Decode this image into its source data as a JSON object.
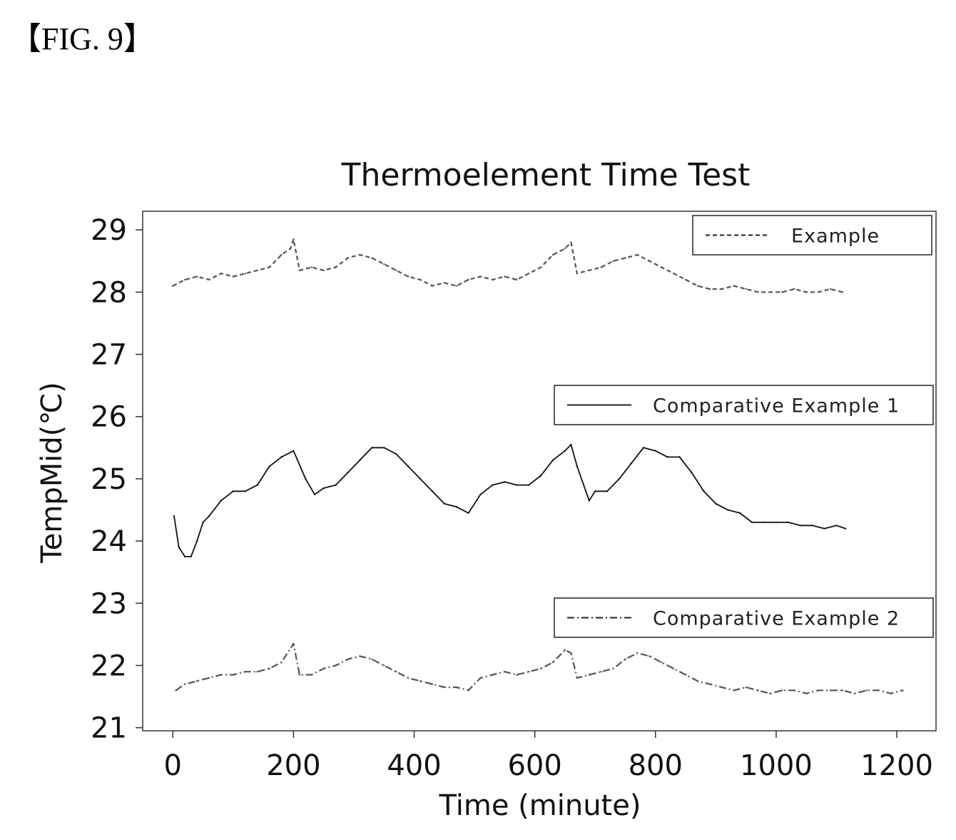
{
  "figure_label": "【FIG. 9】",
  "chart_data": {
    "type": "line",
    "title": "Thermoelement Time Test",
    "xlabel": "Time (minute)",
    "ylabel": "TempMid(℃)",
    "xlim": [
      -50,
      1265
    ],
    "ylim": [
      20.95,
      29.3
    ],
    "x_ticks": [
      "0",
      "200",
      "400",
      "600",
      "800",
      "1000",
      "1200"
    ],
    "y_ticks": [
      "21",
      "22",
      "23",
      "24",
      "25",
      "26",
      "27",
      "28",
      "29"
    ],
    "grid": false,
    "series": [
      {
        "name": "Example",
        "style": "dashed",
        "color": "#555555",
        "x": [
          0,
          20,
          40,
          60,
          80,
          100,
          120,
          140,
          160,
          180,
          195,
          200,
          210,
          230,
          250,
          270,
          290,
          310,
          330,
          350,
          370,
          390,
          410,
          430,
          450,
          470,
          490,
          510,
          530,
          550,
          570,
          590,
          610,
          630,
          650,
          660,
          670,
          690,
          710,
          730,
          750,
          770,
          790,
          810,
          830,
          850,
          870,
          890,
          910,
          930,
          950,
          970,
          990,
          1010,
          1030,
          1050,
          1070,
          1090,
          1110
        ],
        "y": [
          28.1,
          28.2,
          28.25,
          28.2,
          28.3,
          28.25,
          28.3,
          28.35,
          28.4,
          28.6,
          28.7,
          28.85,
          28.35,
          28.4,
          28.35,
          28.4,
          28.55,
          28.6,
          28.55,
          28.45,
          28.35,
          28.25,
          28.2,
          28.1,
          28.15,
          28.1,
          28.2,
          28.25,
          28.2,
          28.25,
          28.2,
          28.3,
          28.4,
          28.6,
          28.7,
          28.8,
          28.3,
          28.35,
          28.4,
          28.5,
          28.55,
          28.6,
          28.5,
          28.4,
          28.3,
          28.2,
          28.1,
          28.05,
          28.05,
          28.1,
          28.05,
          28.0,
          28.0,
          28.0,
          28.05,
          28.0,
          28.0,
          28.05,
          28.0
        ]
      },
      {
        "name": "Comparative Example 1",
        "style": "solid",
        "color": "#111111",
        "x": [
          2,
          10,
          20,
          30,
          40,
          50,
          60,
          80,
          100,
          120,
          140,
          160,
          180,
          200,
          220,
          235,
          250,
          270,
          290,
          310,
          330,
          350,
          370,
          390,
          410,
          430,
          450,
          470,
          490,
          510,
          530,
          550,
          570,
          590,
          610,
          630,
          650,
          660,
          670,
          690,
          700,
          720,
          740,
          760,
          780,
          800,
          820,
          840,
          860,
          880,
          900,
          920,
          940,
          960,
          980,
          1000,
          1020,
          1040,
          1060,
          1080,
          1100,
          1115
        ],
        "y": [
          24.4,
          23.9,
          23.75,
          23.75,
          24.0,
          24.3,
          24.4,
          24.65,
          24.8,
          24.8,
          24.9,
          25.2,
          25.35,
          25.45,
          25.0,
          24.75,
          24.85,
          24.9,
          25.1,
          25.3,
          25.5,
          25.5,
          25.4,
          25.2,
          25.0,
          24.8,
          24.6,
          24.55,
          24.45,
          24.75,
          24.9,
          24.95,
          24.9,
          24.9,
          25.05,
          25.3,
          25.45,
          25.55,
          25.2,
          24.65,
          24.8,
          24.8,
          25.0,
          25.25,
          25.5,
          25.45,
          25.35,
          25.35,
          25.1,
          24.8,
          24.6,
          24.5,
          24.45,
          24.3,
          24.3,
          24.3,
          24.3,
          24.25,
          24.25,
          24.2,
          24.25,
          24.2
        ]
      },
      {
        "name": "Comparative Example 2",
        "style": "dashdot",
        "color": "#555555",
        "x": [
          5,
          20,
          40,
          60,
          80,
          100,
          120,
          140,
          160,
          180,
          200,
          210,
          230,
          250,
          270,
          290,
          310,
          330,
          350,
          370,
          390,
          410,
          430,
          450,
          470,
          490,
          510,
          530,
          550,
          570,
          590,
          610,
          630,
          650,
          660,
          670,
          690,
          710,
          730,
          750,
          770,
          790,
          810,
          830,
          850,
          870,
          890,
          910,
          930,
          950,
          970,
          990,
          1010,
          1030,
          1050,
          1070,
          1090,
          1110,
          1130,
          1150,
          1170,
          1190,
          1210
        ],
        "y": [
          21.6,
          21.7,
          21.75,
          21.8,
          21.85,
          21.85,
          21.9,
          21.9,
          21.95,
          22.05,
          22.35,
          21.85,
          21.85,
          21.95,
          22.0,
          22.1,
          22.15,
          22.1,
          22.0,
          21.9,
          21.8,
          21.75,
          21.7,
          21.65,
          21.65,
          21.6,
          21.8,
          21.85,
          21.9,
          21.85,
          21.9,
          21.95,
          22.05,
          22.25,
          22.2,
          21.8,
          21.85,
          21.9,
          21.95,
          22.1,
          22.2,
          22.15,
          22.05,
          21.95,
          21.85,
          21.75,
          21.7,
          21.65,
          21.6,
          21.65,
          21.6,
          21.55,
          21.6,
          21.6,
          21.55,
          21.6,
          21.6,
          21.6,
          21.55,
          21.6,
          21.6,
          21.55,
          21.6
        ]
      }
    ],
    "legends": [
      {
        "label": "Example"
      },
      {
        "label": "Comparative Example 1"
      },
      {
        "label": "Comparative Example 2"
      }
    ]
  }
}
